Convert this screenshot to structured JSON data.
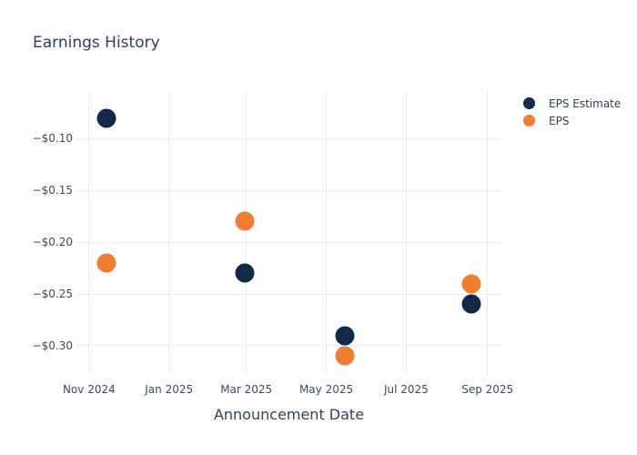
{
  "chart_data": {
    "type": "scatter",
    "title": "Earnings History",
    "xlabel": "Announcement Date",
    "ylabel": "",
    "grid": true,
    "legend_position": "top-right",
    "marker_size": 21,
    "x_range": [
      "2024-10-21",
      "2025-09-13"
    ],
    "y_range": [
      -0.322,
      -0.054
    ],
    "x_ticks": [
      {
        "date": "2024-11-01",
        "label": "Nov 2024"
      },
      {
        "date": "2025-01-01",
        "label": "Jan 2025"
      },
      {
        "date": "2025-03-01",
        "label": "Mar 2025"
      },
      {
        "date": "2025-05-01",
        "label": "May 2025"
      },
      {
        "date": "2025-07-01",
        "label": "Jul 2025"
      },
      {
        "date": "2025-09-01",
        "label": "Sep 2025"
      }
    ],
    "y_ticks": [
      {
        "value": -0.1,
        "label": "−$0.10"
      },
      {
        "value": -0.15,
        "label": "−$0.15"
      },
      {
        "value": -0.2,
        "label": "−$0.20"
      },
      {
        "value": -0.25,
        "label": "−$0.25"
      },
      {
        "value": -0.3,
        "label": "−$0.30"
      }
    ],
    "x": [
      "2024-11-14",
      "2025-02-28",
      "2025-05-15",
      "2025-08-20"
    ],
    "series": [
      {
        "name": "EPS Estimate",
        "color": "#142847",
        "values": [
          -0.08,
          -0.23,
          -0.29,
          -0.26
        ]
      },
      {
        "name": "EPS",
        "color": "#f07d30",
        "values": [
          -0.22,
          -0.18,
          -0.31,
          -0.24
        ]
      }
    ]
  },
  "colors": {
    "background": "#ffffff",
    "gridline": "#e9ecf2",
    "title_text": "#2d3f5e",
    "tick_text": "#3b4b66"
  }
}
